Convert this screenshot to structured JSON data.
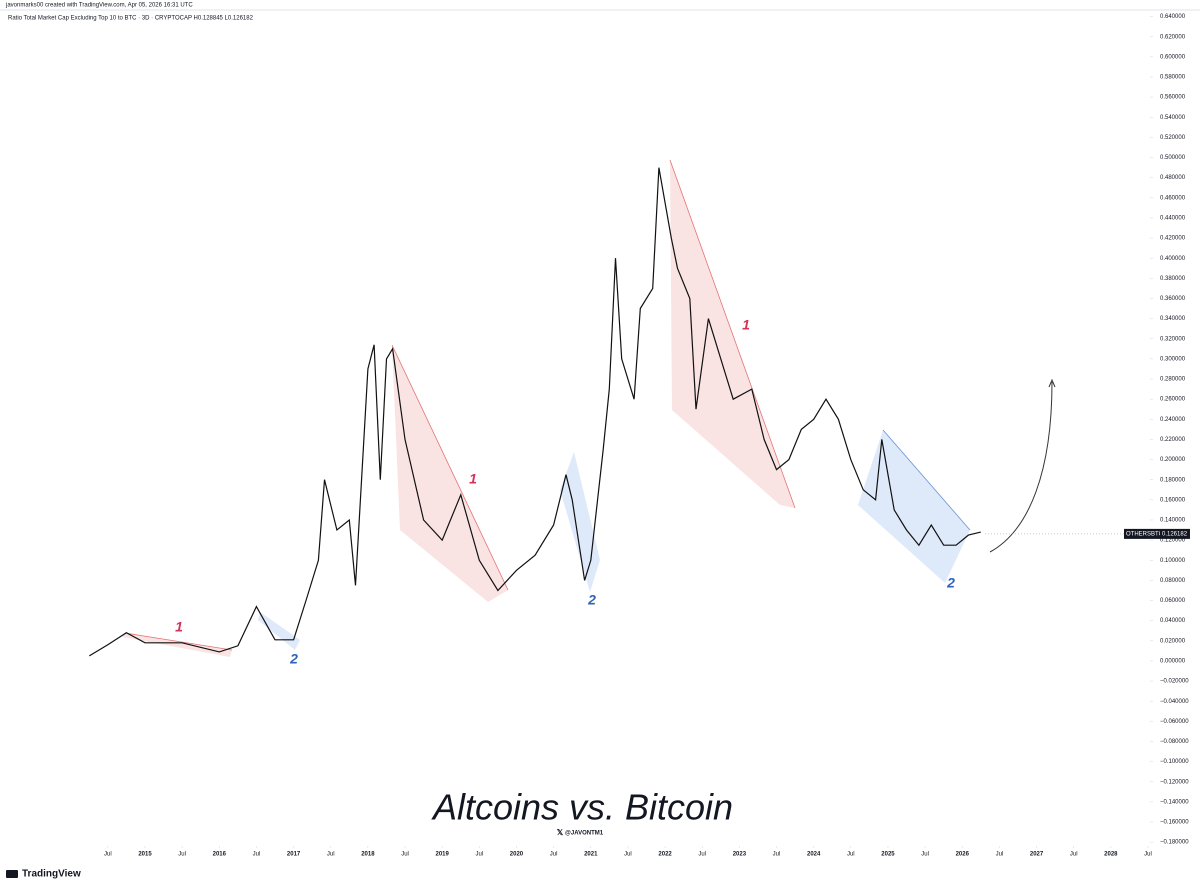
{
  "chart_data": {
    "type": "line",
    "header": "javonmarks00 created with TradingView.com, Apr 05, 2026 16:31 UTC",
    "symbol_line": "Ratio Total Market Cap Excluding Top 10 to BTC · 3D · CRYPTOCAP  H0.128845  L0.126182",
    "title": "Altcoins vs. Bitcoin",
    "handle": "@JAVONTM1",
    "brand": "TradingView",
    "symbol": "OTHERSBTC",
    "last_price": {
      "value": 0.126182,
      "label": "0.126182"
    },
    "annotations": [
      "1",
      "2",
      "1",
      "2",
      "1",
      "2"
    ],
    "series": [
      {
        "name": "OTHERSBTC",
        "color": "#111111",
        "x": [
          "2014-04",
          "2014-07",
          "2014-10",
          "2015-01",
          "2015-07",
          "2016-01",
          "2016-04",
          "2016-07",
          "2016-10",
          "2017-01",
          "2017-03",
          "2017-05",
          "2017-06",
          "2017-08",
          "2017-10",
          "2017-11",
          "2018-01",
          "2018-02",
          "2018-03",
          "2018-04",
          "2018-05",
          "2018-07",
          "2018-10",
          "2019-01",
          "2019-04",
          "2019-07",
          "2019-10",
          "2020-01",
          "2020-04",
          "2020-07",
          "2020-09",
          "2020-10",
          "2020-12",
          "2021-01",
          "2021-03",
          "2021-04",
          "2021-05",
          "2021-06",
          "2021-08",
          "2021-09",
          "2021-11",
          "2021-12",
          "2022-02",
          "2022-03",
          "2022-05",
          "2022-06",
          "2022-08",
          "2022-10",
          "2022-12",
          "2023-03",
          "2023-05",
          "2023-07",
          "2023-09",
          "2023-11",
          "2024-01",
          "2024-03",
          "2024-05",
          "2024-07",
          "2024-09",
          "2024-11",
          "2024-12",
          "2025-02",
          "2025-04",
          "2025-06",
          "2025-08",
          "2025-10",
          "2025-12",
          "2026-02",
          "2026-04"
        ],
        "values": [
          0.005,
          0.016,
          0.028,
          0.018,
          0.018,
          0.009,
          0.015,
          0.054,
          0.021,
          0.021,
          0.06,
          0.1,
          0.18,
          0.13,
          0.14,
          0.075,
          0.29,
          0.314,
          0.18,
          0.3,
          0.31,
          0.22,
          0.14,
          0.12,
          0.165,
          0.1,
          0.07,
          0.09,
          0.105,
          0.135,
          0.185,
          0.16,
          0.08,
          0.1,
          0.21,
          0.27,
          0.4,
          0.3,
          0.26,
          0.35,
          0.37,
          0.49,
          0.42,
          0.39,
          0.36,
          0.25,
          0.34,
          0.3,
          0.26,
          0.27,
          0.22,
          0.19,
          0.2,
          0.23,
          0.24,
          0.26,
          0.24,
          0.2,
          0.17,
          0.16,
          0.22,
          0.15,
          0.13,
          0.115,
          0.135,
          0.115,
          0.115,
          0.125,
          0.128
        ]
      }
    ],
    "xlim": [
      "2013-01",
      "2028-07"
    ],
    "xticks": [
      {
        "value": "2014-07",
        "label": "Jul"
      },
      {
        "value": "2015-01",
        "label": "2015"
      },
      {
        "value": "2015-07",
        "label": "Jul"
      },
      {
        "value": "2016-01",
        "label": "2016"
      },
      {
        "value": "2016-07",
        "label": "Jul"
      },
      {
        "value": "2017-01",
        "label": "2017"
      },
      {
        "value": "2017-07",
        "label": "Jul"
      },
      {
        "value": "2018-01",
        "label": "2018"
      },
      {
        "value": "2018-07",
        "label": "Jul"
      },
      {
        "value": "2019-01",
        "label": "2019"
      },
      {
        "value": "2019-07",
        "label": "Jul"
      },
      {
        "value": "2020-01",
        "label": "2020"
      },
      {
        "value": "2020-07",
        "label": "Jul"
      },
      {
        "value": "2021-01",
        "label": "2021"
      },
      {
        "value": "2021-07",
        "label": "Jul"
      },
      {
        "value": "2022-01",
        "label": "2022"
      },
      {
        "value": "2022-07",
        "label": "Jul"
      },
      {
        "value": "2023-01",
        "label": "2023"
      },
      {
        "value": "2023-07",
        "label": "Jul"
      },
      {
        "value": "2024-01",
        "label": "2024"
      },
      {
        "value": "2024-07",
        "label": "Jul"
      },
      {
        "value": "2025-01",
        "label": "2025"
      },
      {
        "value": "2025-07",
        "label": "Jul"
      },
      {
        "value": "2026-01",
        "label": "2026"
      },
      {
        "value": "2026-07",
        "label": "Jul"
      },
      {
        "value": "2027-01",
        "label": "2027"
      },
      {
        "value": "2027-07",
        "label": "Jul"
      },
      {
        "value": "2028-01",
        "label": "2028"
      },
      {
        "value": "2028-07",
        "label": "Jul"
      }
    ],
    "ylim": [
      -0.2,
      0.65
    ],
    "yticks": [
      {
        "value": 0.64,
        "label": "0.640000"
      },
      {
        "value": 0.62,
        "label": "0.620000"
      },
      {
        "value": 0.6,
        "label": "0.600000"
      },
      {
        "value": 0.58,
        "label": "0.580000"
      },
      {
        "value": 0.56,
        "label": "0.560000"
      },
      {
        "value": 0.54,
        "label": "0.540000"
      },
      {
        "value": 0.52,
        "label": "0.520000"
      },
      {
        "value": 0.5,
        "label": "0.500000"
      },
      {
        "value": 0.48,
        "label": "0.480000"
      },
      {
        "value": 0.46,
        "label": "0.460000"
      },
      {
        "value": 0.44,
        "label": "0.440000"
      },
      {
        "value": 0.42,
        "label": "0.420000"
      },
      {
        "value": 0.4,
        "label": "0.400000"
      },
      {
        "value": 0.38,
        "label": "0.380000"
      },
      {
        "value": 0.36,
        "label": "0.360000"
      },
      {
        "value": 0.34,
        "label": "0.340000"
      },
      {
        "value": 0.32,
        "label": "0.320000"
      },
      {
        "value": 0.3,
        "label": "0.300000"
      },
      {
        "value": 0.28,
        "label": "0.280000"
      },
      {
        "value": 0.26,
        "label": "0.260000"
      },
      {
        "value": 0.24,
        "label": "0.240000"
      },
      {
        "value": 0.22,
        "label": "0.220000"
      },
      {
        "value": 0.2,
        "label": "0.200000"
      },
      {
        "value": 0.18,
        "label": "0.180000"
      },
      {
        "value": 0.16,
        "label": "0.160000"
      },
      {
        "value": 0.14,
        "label": "0.140000"
      },
      {
        "value": 0.12,
        "label": "0.120000"
      },
      {
        "value": 0.1,
        "label": "0.100000"
      },
      {
        "value": 0.08,
        "label": "0.080000"
      },
      {
        "value": 0.06,
        "label": "0.060000"
      },
      {
        "value": 0.04,
        "label": "0.040000"
      },
      {
        "value": 0.02,
        "label": "0.020000"
      },
      {
        "value": 0,
        "label": "0.000000"
      },
      {
        "value": -0.02,
        "label": "−0.020000"
      },
      {
        "value": -0.04,
        "label": "−0.040000"
      },
      {
        "value": -0.06,
        "label": "−0.060000"
      },
      {
        "value": -0.08,
        "label": "−0.080000"
      },
      {
        "value": -0.1,
        "label": "−0.100000"
      },
      {
        "value": -0.12,
        "label": "−0.120000"
      },
      {
        "value": -0.14,
        "label": "−0.140000"
      },
      {
        "value": -0.16,
        "label": "−0.160000"
      },
      {
        "value": -0.18,
        "label": "−0.180000"
      }
    ],
    "grid": false
  }
}
